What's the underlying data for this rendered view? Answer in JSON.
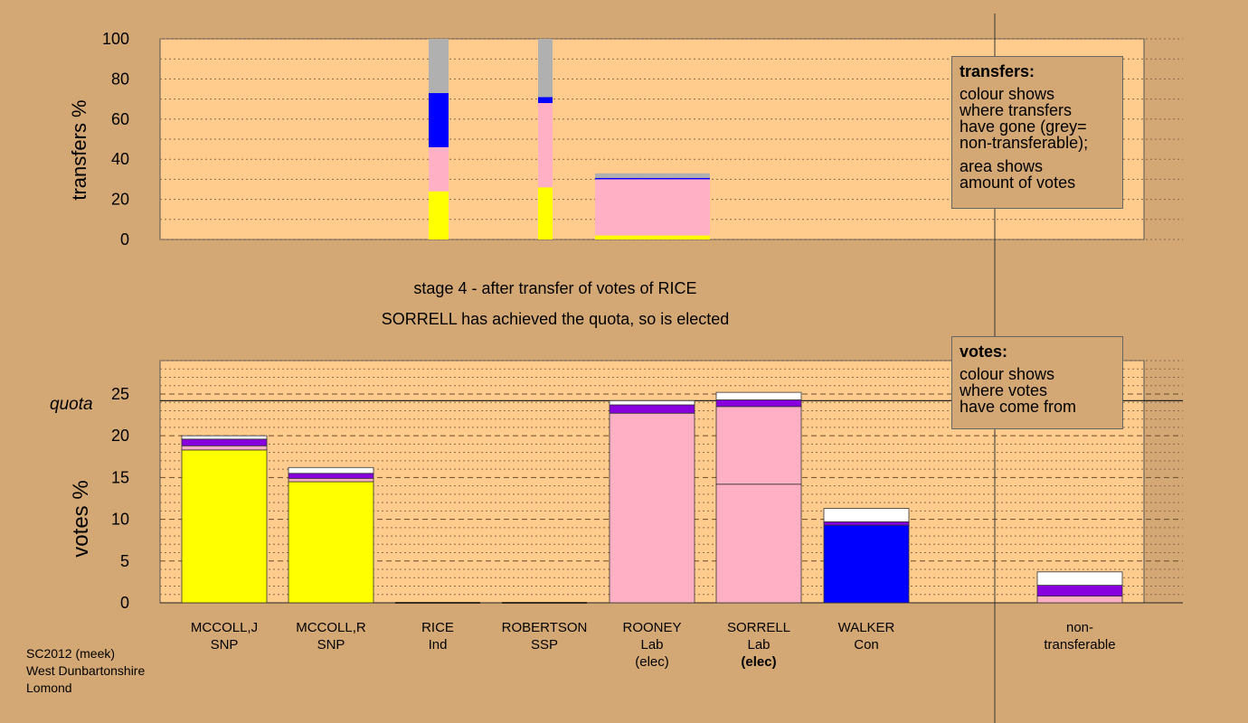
{
  "colors": {
    "background": "#d4a874",
    "plot_area": "#ffcc8e",
    "SNP": "#ffff00",
    "Lab": "#ffb0c4",
    "Con": "#0000ff",
    "Ind": "#8800dd",
    "SSP": "#ff0000",
    "exhausted": "#ffffff",
    "non_transferable": "#b0b0b0"
  },
  "transfers_legend": {
    "title": "transfers:",
    "lines1": [
      "colour shows",
      "where transfers",
      "have gone (grey=",
      "non-transferable);"
    ],
    "lines2": [
      "area shows",
      "amount of votes"
    ]
  },
  "votes_legend": {
    "title": "votes:",
    "lines": [
      "colour shows",
      "where votes",
      "have come from"
    ]
  },
  "stage_text": {
    "line1": "stage 4 - after transfer of votes of RICE",
    "line2": "SORRELL has achieved the quota, so is elected"
  },
  "footer": {
    "line1": "SC2012 (meek)",
    "line2": "West Dunbartonshire",
    "line3": "Lomond"
  },
  "chart_data": [
    {
      "type": "bar",
      "title": "",
      "ylabel": "transfers %",
      "ylim": [
        0,
        100
      ],
      "yticks": [
        0,
        20,
        40,
        60,
        80,
        100
      ],
      "bars": [
        {
          "candidate": "RICE",
          "width_share": "narrow",
          "segments": [
            {
              "party": "SNP",
              "from": 0,
              "to": 24
            },
            {
              "party": "Lab",
              "from": 24,
              "to": 46
            },
            {
              "party": "Con",
              "from": 46,
              "to": 73
            },
            {
              "party": "non-transferable",
              "from": 73,
              "to": 100
            }
          ]
        },
        {
          "candidate": "ROBERTSON",
          "width_share": "narrow",
          "segments": [
            {
              "party": "SNP",
              "from": 0,
              "to": 26
            },
            {
              "party": "Lab",
              "from": 26,
              "to": 68
            },
            {
              "party": "Con",
              "from": 68,
              "to": 71
            },
            {
              "party": "non-transferable",
              "from": 71,
              "to": 100
            }
          ]
        },
        {
          "candidate": "SORRELL",
          "width_share": "wide",
          "segments": [
            {
              "party": "SNP",
              "from": 0,
              "to": 2
            },
            {
              "party": "Lab",
              "from": 2,
              "to": 30
            },
            {
              "party": "Con",
              "from": 30,
              "to": 30.7
            },
            {
              "party": "non-transferable",
              "from": 30.7,
              "to": 33
            }
          ]
        }
      ]
    },
    {
      "type": "bar",
      "title": "",
      "ylabel": "votes %",
      "ylim": [
        0,
        29
      ],
      "yticks": [
        0,
        5,
        10,
        15,
        20,
        25
      ],
      "quota": 24.2,
      "quota_label": "quota",
      "categories": [
        {
          "name": "MCCOLL,J",
          "party": "SNP",
          "status": ""
        },
        {
          "name": "MCCOLL,R",
          "party": "SNP",
          "status": ""
        },
        {
          "name": "RICE",
          "party": "Ind",
          "status": ""
        },
        {
          "name": "ROBERTSON",
          "party": "SSP",
          "status": ""
        },
        {
          "name": "ROONEY",
          "party": "Lab",
          "status": "(elec)"
        },
        {
          "name": "SORRELL",
          "party": "Lab",
          "status": "(elec)"
        },
        {
          "name": "WALKER",
          "party": "Con",
          "status": ""
        },
        {
          "name": "non-",
          "party": "transferable",
          "status": ""
        }
      ],
      "stacks": [
        [
          {
            "party": "SNP",
            "value": 18.3
          },
          {
            "party": "Lab",
            "value": 0.5
          },
          {
            "party": "Ind",
            "value": 0.8
          },
          {
            "party": "exhausted",
            "value": 0.4
          }
        ],
        [
          {
            "party": "SNP",
            "value": 14.5
          },
          {
            "party": "Lab",
            "value": 0.4
          },
          {
            "party": "Ind",
            "value": 0.6
          },
          {
            "party": "exhausted",
            "value": 0.7
          }
        ],
        [],
        [],
        [
          {
            "party": "Lab",
            "value": 22.7
          },
          {
            "party": "Ind",
            "value": 1.0
          },
          {
            "party": "exhausted",
            "value": 0.5
          }
        ],
        [
          {
            "party": "Lab",
            "value": 14.2
          },
          {
            "party": "Lab",
            "value": 9.3
          },
          {
            "party": "Ind",
            "value": 0.8
          },
          {
            "party": "exhausted",
            "value": 0.9
          }
        ],
        [
          {
            "party": "Con",
            "value": 9.3
          },
          {
            "party": "Ind",
            "value": 0.4
          },
          {
            "party": "exhausted",
            "value": 1.6
          }
        ],
        [
          {
            "party": "Lab",
            "value": 0.8
          },
          {
            "party": "Ind",
            "value": 1.3
          },
          {
            "party": "exhausted",
            "value": 1.6
          }
        ]
      ]
    }
  ]
}
